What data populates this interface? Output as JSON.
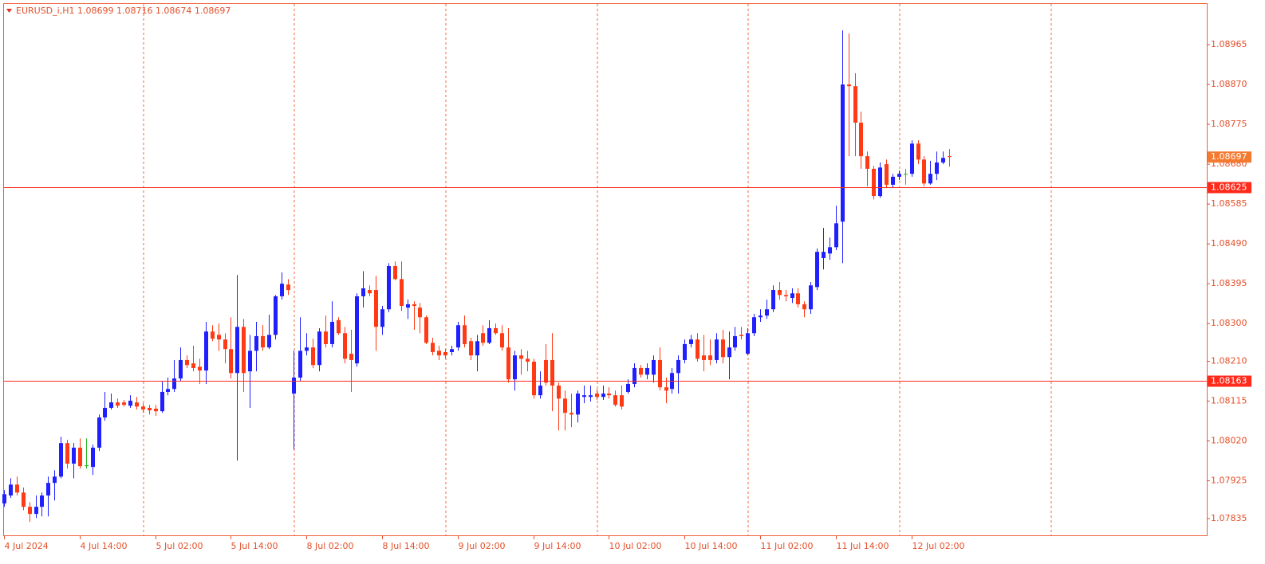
{
  "chart_data": {
    "type": "candlestick",
    "title": "EURUSD_i,H1  1.08699 1.08716 1.08674 1.08697",
    "categories": [
      "4 Jul 2024",
      null,
      null,
      null,
      null,
      null,
      null,
      null,
      null,
      null,
      null,
      null,
      "4 Jul 14:00",
      null,
      null,
      null,
      null,
      null,
      null,
      null,
      null,
      null,
      null,
      null,
      "5 Jul 02:00",
      null,
      null,
      null,
      null,
      null,
      null,
      null,
      null,
      null,
      null,
      null,
      "5 Jul 14:00",
      null,
      null,
      null,
      null,
      null,
      null,
      null,
      null,
      null,
      null,
      null,
      "8 Jul 02:00",
      null,
      null,
      null,
      null,
      null,
      null,
      null,
      null,
      null,
      null,
      null,
      "8 Jul 14:00",
      null,
      null,
      null,
      null,
      null,
      null,
      null,
      null,
      null,
      null,
      null,
      "9 Jul 02:00",
      null,
      null,
      null,
      null,
      null,
      null,
      null,
      null,
      null,
      null,
      null,
      "9 Jul 14:00",
      null,
      null,
      null,
      null,
      null,
      null,
      null,
      null,
      null,
      null,
      null,
      "10 Jul 02:00",
      null,
      null,
      null,
      null,
      null,
      null,
      null,
      null,
      null,
      null,
      null,
      "10 Jul 14:00",
      null,
      null,
      null,
      null,
      null,
      null,
      null,
      null,
      null,
      null,
      null,
      "11 Jul 02:00",
      null,
      null,
      null,
      null,
      null,
      null,
      null,
      null,
      null,
      null,
      null,
      "11 Jul 14:00",
      null,
      null,
      null,
      null,
      null,
      null,
      null,
      null,
      null,
      null,
      null,
      "12 Jul 02:00",
      null,
      null,
      null,
      null,
      null,
      null
    ],
    "open": [
      1.07871,
      1.0789,
      1.07916,
      1.07897,
      1.07863,
      1.07846,
      1.07863,
      1.0789,
      1.0792,
      1.07935,
      1.08015,
      1.07966,
      1.08004,
      1.07962,
      1.07958,
      1.08004,
      1.08076,
      1.08099,
      1.08112,
      1.08112,
      1.08104,
      1.08112,
      1.08102,
      1.08099,
      1.08097,
      1.08091,
      1.08137,
      1.08144,
      1.08169,
      1.08213,
      1.08205,
      1.08197,
      1.08188,
      1.08281,
      1.08273,
      1.08262,
      1.08239,
      1.08182,
      1.08292,
      1.08186,
      1.08235,
      1.0827,
      1.08243,
      1.08273,
      1.08365,
      1.08393,
      1.08133,
      1.08171,
      1.08235,
      1.08243,
      1.08201,
      1.08281,
      1.08251,
      1.08308,
      1.08277,
      1.08228,
      1.08205,
      1.08365,
      1.0838,
      1.0838,
      1.08292,
      1.08334,
      1.08437,
      1.08406,
      1.08338,
      1.08346,
      1.08338,
      1.08315,
      1.08254,
      1.08235,
      1.08232,
      1.08232,
      1.08243,
      1.08296,
      1.08258,
      1.08224,
      1.08277,
      1.08254,
      1.08289,
      1.08277,
      1.08243,
      1.08167,
      1.08224,
      1.08216,
      1.08209,
      1.08129,
      1.08213,
      1.08213,
      1.08152,
      1.08121,
      1.08087,
      1.08083,
      1.08125,
      1.08125,
      1.08133,
      1.08125,
      1.08133,
      1.08129,
      1.08129,
      1.08137,
      1.08156,
      1.08194,
      1.08178,
      1.08178,
      1.08213,
      1.08148,
      1.08144,
      1.08182,
      1.08213,
      1.08251,
      1.08262,
      1.08224,
      1.08224,
      1.08213,
      1.08262,
      1.0822,
      1.08243,
      1.08273,
      1.08228,
      1.08277,
      1.08315,
      1.08319,
      1.08334,
      1.0838,
      1.08368,
      1.08361,
      1.08372,
      1.08346,
      1.08334,
      1.08387,
      1.08456,
      1.08467,
      1.08482,
      1.08543,
      1.0887,
      1.08866,
      1.08779,
      1.08699,
      1.08669,
      1.08604,
      1.0868,
      1.08631,
      1.0865,
      1.08657,
      1.08657,
      1.08729,
      1.08691,
      1.08634,
      1.08657,
      1.08684,
      1.08699
    ],
    "high": [
      1.07903,
      1.07931,
      1.07935,
      1.07909,
      1.07874,
      1.0789,
      1.07897,
      1.07935,
      1.0795,
      1.0803,
      1.08023,
      1.08015,
      1.08026,
      1.08026,
      1.08011,
      1.08083,
      1.08137,
      1.08133,
      1.08121,
      1.08118,
      1.08129,
      1.08125,
      1.0811,
      1.08106,
      1.08106,
      1.08163,
      1.08171,
      1.08213,
      1.08243,
      1.08224,
      1.08247,
      1.08216,
      1.08304,
      1.08296,
      1.083,
      1.08277,
      1.08315,
      1.08416,
      1.08311,
      1.08273,
      1.08304,
      1.08296,
      1.08321,
      1.08368,
      1.08422,
      1.08406,
      1.08235,
      1.08315,
      1.08277,
      1.08264,
      1.08289,
      1.08319,
      1.08353,
      1.08315,
      1.08292,
      1.08285,
      1.08372,
      1.08425,
      1.08391,
      1.08414,
      1.08342,
      1.08444,
      1.08448,
      1.08448,
      1.08357,
      1.08353,
      1.08349,
      1.08319,
      1.08266,
      1.08247,
      1.08239,
      1.08247,
      1.08304,
      1.08319,
      1.08266,
      1.08273,
      1.08296,
      1.08308,
      1.083,
      1.08296,
      1.08289,
      1.08235,
      1.08239,
      1.08235,
      1.08216,
      1.08186,
      1.08251,
      1.08277,
      1.08159,
      1.0814,
      1.08133,
      1.0814,
      1.08152,
      1.08152,
      1.08144,
      1.08152,
      1.08148,
      1.0814,
      1.08152,
      1.08167,
      1.08205,
      1.08201,
      1.08205,
      1.08224,
      1.08243,
      1.08171,
      1.08194,
      1.08224,
      1.08262,
      1.08273,
      1.08277,
      1.08273,
      1.08262,
      1.08277,
      1.08285,
      1.08281,
      1.08292,
      1.08292,
      1.08289,
      1.08323,
      1.08334,
      1.08357,
      1.08391,
      1.08399,
      1.0838,
      1.08384,
      1.08384,
      1.08353,
      1.08399,
      1.08479,
      1.08528,
      1.08505,
      1.08581,
      1.08999,
      1.08992,
      1.08897,
      1.08805,
      1.0871,
      1.08676,
      1.08684,
      1.08691,
      1.08657,
      1.08665,
      1.08669,
      1.08737,
      1.08737,
      1.08699,
      1.08688,
      1.0871,
      1.0871,
      1.08716
    ],
    "low": [
      1.07863,
      1.07884,
      1.0789,
      1.07855,
      1.07827,
      1.07836,
      1.0784,
      1.0784,
      1.07878,
      1.07931,
      1.07954,
      1.07931,
      1.07954,
      1.07954,
      1.07939,
      1.07996,
      1.08068,
      1.08095,
      1.08099,
      1.08102,
      1.08099,
      1.08095,
      1.08087,
      1.08083,
      1.0808,
      1.08087,
      1.08129,
      1.08137,
      1.08163,
      1.08194,
      1.08186,
      1.08156,
      1.08156,
      1.08258,
      1.08235,
      1.08205,
      1.08169,
      1.07973,
      1.08137,
      1.08099,
      1.08186,
      1.08235,
      1.08239,
      1.08262,
      1.08357,
      1.08368,
      1.08,
      1.08163,
      1.08224,
      1.08194,
      1.08186,
      1.08243,
      1.08243,
      1.08273,
      1.08205,
      1.08137,
      1.08197,
      1.08338,
      1.08365,
      1.08235,
      1.08273,
      1.08327,
      1.08403,
      1.0833,
      1.08311,
      1.08285,
      1.08277,
      1.08251,
      1.08224,
      1.08213,
      1.08216,
      1.08224,
      1.08235,
      1.08243,
      1.08213,
      1.08186,
      1.08247,
      1.08251,
      1.08273,
      1.08235,
      1.08159,
      1.0814,
      1.08178,
      1.08186,
      1.08121,
      1.08121,
      1.08152,
      1.08091,
      1.08045,
      1.08045,
      1.08053,
      1.08064,
      1.0811,
      1.08114,
      1.08118,
      1.08118,
      1.08121,
      1.08102,
      1.08095,
      1.08133,
      1.08148,
      1.08171,
      1.08167,
      1.08159,
      1.0814,
      1.0811,
      1.08133,
      1.08133,
      1.08205,
      1.08243,
      1.08209,
      1.08186,
      1.08201,
      1.08205,
      1.08205,
      1.08167,
      1.08235,
      1.08262,
      1.08224,
      1.0827,
      1.08304,
      1.08311,
      1.08327,
      1.08357,
      1.08353,
      1.08349,
      1.08338,
      1.08315,
      1.08323,
      1.0838,
      1.08429,
      1.08452,
      1.08475,
      1.08444,
      1.08699,
      1.08699,
      1.08669,
      1.08627,
      1.08596,
      1.086,
      1.08623,
      1.08623,
      1.08642,
      1.08631,
      1.0865,
      1.0868,
      1.08627,
      1.08631,
      1.08642,
      1.0868,
      1.08674
    ],
    "close": [
      1.07893,
      1.07916,
      1.07897,
      1.07863,
      1.07846,
      1.07863,
      1.0789,
      1.0792,
      1.07935,
      1.08015,
      1.07966,
      1.08004,
      1.0796,
      1.07962,
      1.08004,
      1.08076,
      1.08099,
      1.08112,
      1.08104,
      1.08106,
      1.08116,
      1.08102,
      1.08095,
      1.08093,
      1.08091,
      1.08137,
      1.08144,
      1.08169,
      1.08213,
      1.08201,
      1.08194,
      1.08188,
      1.08281,
      1.08264,
      1.08262,
      1.08239,
      1.08182,
      1.08292,
      1.08182,
      1.08235,
      1.0827,
      1.08243,
      1.08273,
      1.08365,
      1.08395,
      1.0838,
      1.08171,
      1.08235,
      1.08243,
      1.08201,
      1.08281,
      1.08251,
      1.08304,
      1.08277,
      1.08216,
      1.08213,
      1.08365,
      1.08384,
      1.08372,
      1.08292,
      1.08334,
      1.08437,
      1.08406,
      1.08342,
      1.08346,
      1.08342,
      1.08315,
      1.08254,
      1.08232,
      1.08224,
      1.08224,
      1.08239,
      1.08296,
      1.08251,
      1.08224,
      1.08258,
      1.08254,
      1.08289,
      1.08277,
      1.08243,
      1.08167,
      1.08224,
      1.08216,
      1.08209,
      1.08129,
      1.08152,
      1.08159,
      1.08152,
      1.08121,
      1.08087,
      1.08083,
      1.08133,
      1.08129,
      1.08129,
      1.08125,
      1.08133,
      1.08129,
      1.08106,
      1.08102,
      1.08156,
      1.08194,
      1.08178,
      1.08194,
      1.08213,
      1.08148,
      1.0814,
      1.08182,
      1.08213,
      1.08251,
      1.08262,
      1.08216,
      1.08213,
      1.08213,
      1.08262,
      1.0822,
      1.08243,
      1.0827,
      1.0827,
      1.08277,
      1.08315,
      1.08319,
      1.08334,
      1.0838,
      1.08368,
      1.08365,
      1.08372,
      1.08346,
      1.08334,
      1.08391,
      1.08471,
      1.08471,
      1.08482,
      1.08539,
      1.0887,
      1.08866,
      1.08779,
      1.08699,
      1.08669,
      1.08604,
      1.08672,
      1.08631,
      1.0865,
      1.08657,
      1.08657,
      1.08729,
      1.08691,
      1.08634,
      1.08657,
      1.08684,
      1.08695,
      1.08697
    ],
    "bull_color": "#1f1fff",
    "bear_color": "#ff3a14",
    "doji_color": "#22b822",
    "ylim": [
      1.07795,
      1.09062
    ],
    "yticks": [
      1.08965,
      {
        "value": 1.0887,
        "label": "1.08870"
      },
      1.08775,
      {
        "value": 1.0868,
        "label": "1.08680"
      },
      1.08585,
      {
        "value": 1.0849,
        "label": "1.08490"
      },
      1.08395,
      {
        "value": 1.083,
        "label": "1.08300"
      },
      {
        "value": 1.0821,
        "label": "1.08210"
      },
      1.08115,
      {
        "value": 1.0802,
        "label": "1.08020"
      },
      1.07925,
      1.07835
    ],
    "hlines": [
      1.08625,
      1.08163
    ],
    "hline_color": "#ff2a1a",
    "bid": 1.08697,
    "bid_color": "#f47a30"
  }
}
